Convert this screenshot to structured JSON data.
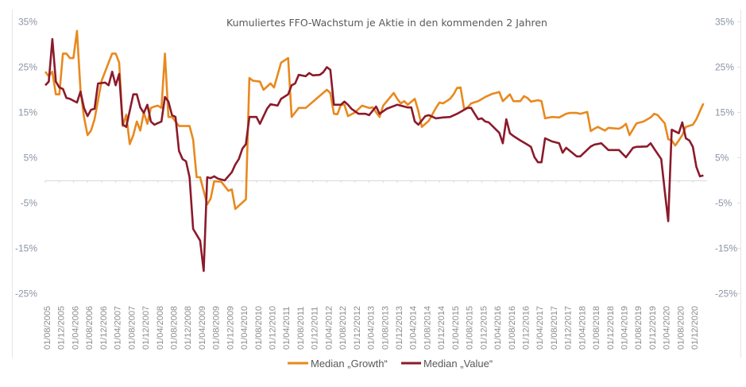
{
  "chart_data": {
    "type": "line",
    "title": "Kumuliertes FFO-Wachstum je Aktie in den kommenden 2 Jahren",
    "xlabel": "",
    "ylabel": "",
    "ylim": [
      -25,
      35
    ],
    "y_ticks": [
      "35%",
      "25%",
      "15%",
      "5%",
      "-5%",
      "-15%",
      "-25%"
    ],
    "y_tick_values": [
      35,
      25,
      15,
      5,
      -5,
      -15,
      -25
    ],
    "secondary_y_axis_mirrored": true,
    "grid": false,
    "zero_line": true,
    "legend_position": "bottom",
    "x_tick_labels": [
      "01/08/2005",
      "01/12/2005",
      "01/04/2006",
      "01/08/2006",
      "01/12/2006",
      "01/04/2007",
      "01/08/2007",
      "01/12/2007",
      "01/04/2008",
      "01/08/2008",
      "01/12/2008",
      "01/04/2009",
      "01/08/2009",
      "01/12/2009",
      "01/04/2010",
      "01/08/2010",
      "01/12/2010",
      "01/04/2011",
      "01/08/2011",
      "01/12/2011",
      "01/04/2012",
      "01/08/2012",
      "01/12/2012",
      "01/04/2013",
      "01/08/2013",
      "01/12/2013",
      "01/04/2014",
      "01/08/2014",
      "01/12/2014",
      "01/04/2015",
      "01/08/2015",
      "01/12/2015",
      "01/04/2016",
      "01/08/2016",
      "01/12/2016",
      "01/04/2017",
      "01/08/2017",
      "01/12/2017",
      "01/04/2018",
      "01/08/2018",
      "01/12/2018",
      "01/04/2019",
      "01/08/2019",
      "01/12/2019",
      "01/04/2020",
      "01/08/2020",
      "01/12/2020"
    ],
    "series": [
      {
        "name": "Median „Growth“",
        "color": "#E8891E",
        "points": [
          [
            "2005-08",
            24
          ],
          [
            "2005-09",
            23
          ],
          [
            "2005-10",
            24
          ],
          [
            "2005-11",
            19
          ],
          [
            "2005-12",
            19
          ],
          [
            "2006-01",
            28
          ],
          [
            "2006-02",
            28
          ],
          [
            "2006-03",
            27
          ],
          [
            "2006-04",
            27
          ],
          [
            "2006-05",
            33
          ],
          [
            "2006-06",
            20
          ],
          [
            "2006-07",
            14
          ],
          [
            "2006-08",
            10
          ],
          [
            "2006-09",
            11
          ],
          [
            "2006-10",
            13.5
          ],
          [
            "2006-12",
            22
          ],
          [
            "2007-02",
            26
          ],
          [
            "2007-03",
            28
          ],
          [
            "2007-04",
            28
          ],
          [
            "2007-05",
            26
          ],
          [
            "2007-06",
            12
          ],
          [
            "2007-07",
            14.5
          ],
          [
            "2007-08",
            8
          ],
          [
            "2007-09",
            10
          ],
          [
            "2007-10",
            13
          ],
          [
            "2007-11",
            11
          ],
          [
            "2007-12",
            15
          ],
          [
            "2008-01",
            12.5
          ],
          [
            "2008-02",
            16
          ],
          [
            "2008-03",
            16.3
          ],
          [
            "2008-04",
            16.5
          ],
          [
            "2008-05",
            16
          ],
          [
            "2008-06",
            28
          ],
          [
            "2008-07",
            14
          ],
          [
            "2008-08",
            14
          ],
          [
            "2008-10",
            12
          ],
          [
            "2009-01",
            12
          ],
          [
            "2009-02",
            9
          ],
          [
            "2009-03",
            0.7
          ],
          [
            "2009-04",
            0.7
          ],
          [
            "2009-06",
            -5.3
          ],
          [
            "2009-07",
            -4
          ],
          [
            "2009-08",
            -0.2
          ],
          [
            "2009-10",
            -0.3
          ],
          [
            "2009-12",
            -2.3
          ],
          [
            "2010-01",
            -2
          ],
          [
            "2010-02",
            -6.3
          ],
          [
            "2010-05",
            -4.2
          ],
          [
            "2010-06",
            22.6
          ],
          [
            "2010-07",
            22
          ],
          [
            "2010-09",
            21.8
          ],
          [
            "2010-10",
            20
          ],
          [
            "2010-12",
            21.4
          ],
          [
            "2011-01",
            20.5
          ],
          [
            "2011-03",
            26
          ],
          [
            "2011-05",
            27
          ],
          [
            "2011-06",
            14
          ],
          [
            "2011-08",
            16
          ],
          [
            "2011-10",
            16
          ],
          [
            "2012-01",
            18
          ],
          [
            "2012-04",
            20
          ],
          [
            "2012-05",
            19.3
          ],
          [
            "2012-06",
            14.7
          ],
          [
            "2012-07",
            14.6
          ],
          [
            "2012-08",
            16.7
          ],
          [
            "2012-09",
            16.7
          ],
          [
            "2012-10",
            14.2
          ],
          [
            "2012-12",
            15
          ],
          [
            "2013-02",
            16.5
          ],
          [
            "2013-04",
            16
          ],
          [
            "2013-05",
            16.1
          ],
          [
            "2013-07",
            14
          ],
          [
            "2013-08",
            16.5
          ],
          [
            "2013-11",
            19.3
          ],
          [
            "2013-12",
            18
          ],
          [
            "2014-01",
            17
          ],
          [
            "2014-02",
            17.5
          ],
          [
            "2014-03",
            16.7
          ],
          [
            "2014-05",
            18
          ],
          [
            "2014-06",
            15.3
          ],
          [
            "2014-07",
            11.8
          ],
          [
            "2014-09",
            13.2
          ],
          [
            "2014-11",
            16
          ],
          [
            "2014-12",
            17.2
          ],
          [
            "2015-01",
            17
          ],
          [
            "2015-02",
            17.5
          ],
          [
            "2015-03",
            18
          ],
          [
            "2015-04",
            19
          ],
          [
            "2015-05",
            20.4
          ],
          [
            "2015-06",
            20.5
          ],
          [
            "2015-07",
            15.8
          ],
          [
            "2015-08",
            16.1
          ],
          [
            "2015-09",
            17
          ],
          [
            "2015-11",
            17.5
          ],
          [
            "2016-01",
            18.4
          ],
          [
            "2016-03",
            19.1
          ],
          [
            "2016-05",
            19.5
          ],
          [
            "2016-06",
            17.5
          ],
          [
            "2016-08",
            19
          ],
          [
            "2016-09",
            17.5
          ],
          [
            "2016-11",
            17.5
          ],
          [
            "2016-12",
            18.6
          ],
          [
            "2017-01",
            18.2
          ],
          [
            "2017-02",
            17.4
          ],
          [
            "2017-04",
            17.7
          ],
          [
            "2017-05",
            17.5
          ],
          [
            "2017-06",
            13.7
          ],
          [
            "2017-08",
            14
          ],
          [
            "2017-10",
            13.9
          ],
          [
            "2017-12",
            14.7
          ],
          [
            "2018-01",
            14.9
          ],
          [
            "2018-03",
            14.9
          ],
          [
            "2018-04",
            14.7
          ],
          [
            "2018-06",
            15.1
          ],
          [
            "2018-07",
            10.9
          ],
          [
            "2018-08",
            11.4
          ],
          [
            "2018-09",
            11.8
          ],
          [
            "2018-11",
            11
          ],
          [
            "2018-12",
            11.6
          ],
          [
            "2019-03",
            11.4
          ],
          [
            "2019-04",
            11.8
          ],
          [
            "2019-05",
            12.5
          ],
          [
            "2019-06",
            10
          ],
          [
            "2019-08",
            12.6
          ],
          [
            "2019-10",
            13
          ],
          [
            "2019-12",
            13.9
          ],
          [
            "2020-01",
            14.7
          ],
          [
            "2020-02",
            14.4
          ],
          [
            "2020-04",
            12.6
          ],
          [
            "2020-05",
            9.1
          ],
          [
            "2020-06",
            8.8
          ],
          [
            "2020-07",
            7.7
          ],
          [
            "2020-08",
            8.8
          ],
          [
            "2020-09",
            10
          ],
          [
            "2020-10",
            11.8
          ],
          [
            "2020-12",
            12.3
          ],
          [
            "2021-01",
            13.5
          ],
          [
            "2021-02",
            15.3
          ],
          [
            "2021-03",
            17
          ]
        ]
      },
      {
        "name": "Median „Value“",
        "color": "#8B1A2B",
        "points": [
          [
            "2005-08",
            21
          ],
          [
            "2005-09",
            21.8
          ],
          [
            "2005-10",
            31.2
          ],
          [
            "2005-11",
            21.8
          ],
          [
            "2005-12",
            20.5
          ],
          [
            "2006-01",
            20.2
          ],
          [
            "2006-02",
            18.2
          ],
          [
            "2006-03",
            18
          ],
          [
            "2006-05",
            17.2
          ],
          [
            "2006-06",
            19.6
          ],
          [
            "2006-07",
            16
          ],
          [
            "2006-08",
            14.2
          ],
          [
            "2006-09",
            15.6
          ],
          [
            "2006-10",
            15.8
          ],
          [
            "2006-11",
            21.4
          ],
          [
            "2007-01",
            21.6
          ],
          [
            "2007-02",
            21
          ],
          [
            "2007-03",
            24
          ],
          [
            "2007-04",
            21
          ],
          [
            "2007-05",
            23.5
          ],
          [
            "2007-06",
            12.3
          ],
          [
            "2007-07",
            11.8
          ],
          [
            "2007-09",
            19
          ],
          [
            "2007-10",
            19
          ],
          [
            "2007-11",
            16.1
          ],
          [
            "2007-12",
            14.9
          ],
          [
            "2008-01",
            16.7
          ],
          [
            "2008-02",
            13
          ],
          [
            "2008-03",
            12.3
          ],
          [
            "2008-05",
            13
          ],
          [
            "2008-06",
            18.4
          ],
          [
            "2008-07",
            17.4
          ],
          [
            "2008-08",
            14.4
          ],
          [
            "2008-09",
            14
          ],
          [
            "2008-10",
            6.5
          ],
          [
            "2008-11",
            4.7
          ],
          [
            "2008-12",
            4.2
          ],
          [
            "2009-01",
            0.7
          ],
          [
            "2009-02",
            -10.7
          ],
          [
            "2009-03",
            -12
          ],
          [
            "2009-04",
            -13.3
          ],
          [
            "2009-05",
            -20
          ],
          [
            "2009-06",
            0.7
          ],
          [
            "2009-07",
            0.5
          ],
          [
            "2009-08",
            0.9
          ],
          [
            "2009-09",
            0.4
          ],
          [
            "2009-11",
            0
          ],
          [
            "2010-01",
            1.8
          ],
          [
            "2010-02",
            3.5
          ],
          [
            "2010-03",
            4.7
          ],
          [
            "2010-04",
            7
          ],
          [
            "2010-05",
            8
          ],
          [
            "2010-06",
            14
          ],
          [
            "2010-08",
            14
          ],
          [
            "2010-09",
            12.5
          ],
          [
            "2010-11",
            15.8
          ],
          [
            "2010-12",
            16.8
          ],
          [
            "2011-02",
            16.5
          ],
          [
            "2011-03",
            18
          ],
          [
            "2011-05",
            19
          ],
          [
            "2011-06",
            21
          ],
          [
            "2011-07",
            21.4
          ],
          [
            "2011-08",
            23.3
          ],
          [
            "2011-10",
            23
          ],
          [
            "2011-11",
            23.7
          ],
          [
            "2011-12",
            23.2
          ],
          [
            "2012-02",
            23.3
          ],
          [
            "2012-03",
            23.9
          ],
          [
            "2012-04",
            25
          ],
          [
            "2012-05",
            24.4
          ],
          [
            "2012-06",
            16.7
          ],
          [
            "2012-08",
            16.7
          ],
          [
            "2012-09",
            17.4
          ],
          [
            "2012-10",
            16.7
          ],
          [
            "2012-11",
            15.8
          ],
          [
            "2013-01",
            14.7
          ],
          [
            "2013-03",
            14.7
          ],
          [
            "2013-04",
            14.4
          ],
          [
            "2013-06",
            16.3
          ],
          [
            "2013-07",
            14.7
          ],
          [
            "2013-09",
            15.8
          ],
          [
            "2013-12",
            16.7
          ],
          [
            "2014-03",
            16.1
          ],
          [
            "2014-04",
            16.1
          ],
          [
            "2014-05",
            13
          ],
          [
            "2014-06",
            12.3
          ],
          [
            "2014-08",
            14.2
          ],
          [
            "2014-09",
            14.4
          ],
          [
            "2014-11",
            13.7
          ],
          [
            "2015-01",
            13.9
          ],
          [
            "2015-03",
            14
          ],
          [
            "2015-05",
            14.7
          ],
          [
            "2015-08",
            16
          ],
          [
            "2015-09",
            16
          ],
          [
            "2015-10",
            14.7
          ],
          [
            "2015-11",
            13.5
          ],
          [
            "2015-12",
            13.7
          ],
          [
            "2016-01",
            13
          ],
          [
            "2016-02",
            12.8
          ],
          [
            "2016-05",
            10.5
          ],
          [
            "2016-06",
            8.2
          ],
          [
            "2016-07",
            13.5
          ],
          [
            "2016-08",
            10.4
          ],
          [
            "2016-09",
            9.8
          ],
          [
            "2016-11",
            8.8
          ],
          [
            "2017-01",
            7.9
          ],
          [
            "2017-02",
            7.4
          ],
          [
            "2017-03",
            5.1
          ],
          [
            "2017-04",
            4
          ],
          [
            "2017-05",
            4
          ],
          [
            "2017-06",
            9.3
          ],
          [
            "2017-08",
            8.6
          ],
          [
            "2017-10",
            8.2
          ],
          [
            "2017-11",
            6.1
          ],
          [
            "2017-12",
            7.2
          ],
          [
            "2018-03",
            5.3
          ],
          [
            "2018-04",
            5.3
          ],
          [
            "2018-07",
            7.5
          ],
          [
            "2018-08",
            7.9
          ],
          [
            "2018-10",
            8.2
          ],
          [
            "2018-12",
            6.7
          ],
          [
            "2019-03",
            6.7
          ],
          [
            "2019-05",
            5.1
          ],
          [
            "2019-07",
            7.2
          ],
          [
            "2019-08",
            7.4
          ],
          [
            "2019-11",
            7.5
          ],
          [
            "2019-12",
            8.2
          ],
          [
            "2020-01",
            7
          ],
          [
            "2020-03",
            4.7
          ],
          [
            "2020-04",
            -2.3
          ],
          [
            "2020-05",
            -9
          ],
          [
            "2020-06",
            11.2
          ],
          [
            "2020-08",
            10.4
          ],
          [
            "2020-09",
            12.8
          ],
          [
            "2020-10",
            9.3
          ],
          [
            "2020-11",
            8.8
          ],
          [
            "2020-12",
            7.4
          ],
          [
            "2021-01",
            3
          ],
          [
            "2021-02",
            0.9
          ],
          [
            "2021-03",
            1.1
          ]
        ]
      }
    ]
  },
  "legend": {
    "growth_label": "Median „Growth“",
    "value_label": "Median „Value“"
  }
}
